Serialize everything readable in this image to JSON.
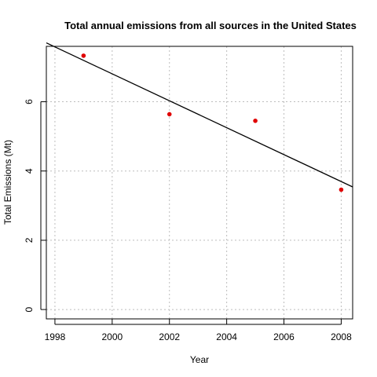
{
  "chart_data": {
    "type": "scatter",
    "title": "Total annual emissions from all sources in the United States",
    "xlabel": "Year",
    "ylabel": "Total Emissions (Mt)",
    "xlim": [
      1997.7,
      2008.4
    ],
    "ylim": [
      -0.27,
      7.6
    ],
    "x_ticks": [
      1998,
      2000,
      2002,
      2004,
      2006,
      2008
    ],
    "y_ticks": [
      0,
      2,
      4,
      6
    ],
    "grid": true,
    "points": [
      {
        "x": 1999,
        "y": 7.33
      },
      {
        "x": 2002,
        "y": 5.64
      },
      {
        "x": 2005,
        "y": 5.45
      },
      {
        "x": 2008,
        "y": 3.46
      }
    ],
    "trend_line": {
      "x": [
        1997.7,
        2008.4
      ],
      "y": [
        7.7,
        3.54
      ]
    },
    "point_color": "#e00000",
    "line_color": "#000000",
    "grid_color": "#bdbdbd"
  }
}
